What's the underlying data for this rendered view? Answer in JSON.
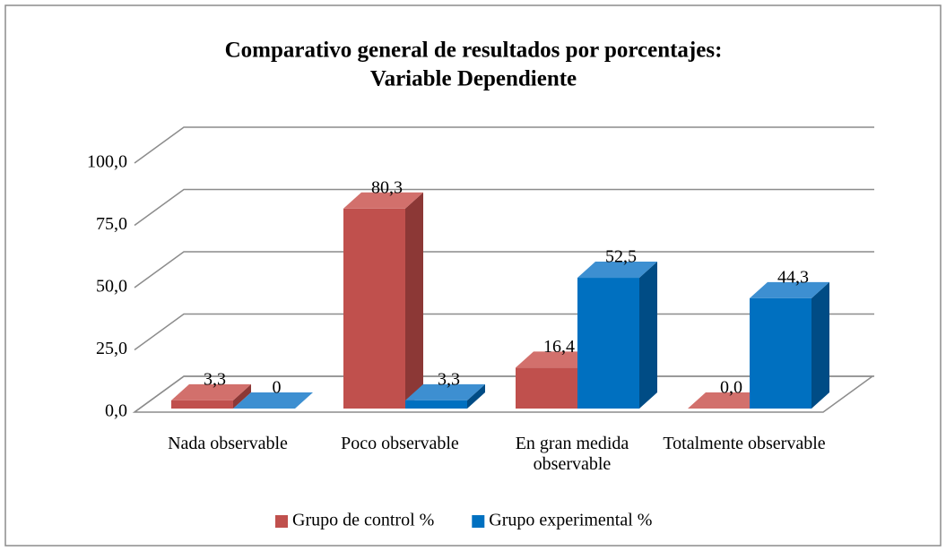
{
  "chart_data": {
    "type": "bar3d",
    "title": [
      "Comparativo general de resultados por porcentajes:",
      "Variable Dependiente"
    ],
    "categories": [
      "Nada observable",
      "Poco observable",
      "En gran medida observable",
      "Totalmente observable"
    ],
    "series": [
      {
        "name": "Grupo de control %",
        "color": "#c0504d",
        "side": "#8c3836",
        "top": "#d2706c",
        "values": [
          3.3,
          80.3,
          16.4,
          0.0
        ],
        "value_labels": [
          "3,3",
          "80,3",
          "16,4",
          "0,0"
        ]
      },
      {
        "name": "Grupo experimental %",
        "color": "#0070c0",
        "side": "#004c85",
        "top": "#3d8fd1",
        "values": [
          0,
          3.3,
          52.5,
          44.3
        ],
        "value_labels": [
          "0",
          "3,3",
          "52,5",
          "44,3"
        ]
      }
    ],
    "ylim": [
      0,
      100
    ],
    "yticks": [
      {
        "value": 0,
        "label": "0,0"
      },
      {
        "value": 25,
        "label": "25,0"
      },
      {
        "value": 50,
        "label": "50,0"
      },
      {
        "value": 75,
        "label": "75,0"
      },
      {
        "value": 100,
        "label": "100,0"
      }
    ],
    "grid": true,
    "legend": "bottom"
  }
}
